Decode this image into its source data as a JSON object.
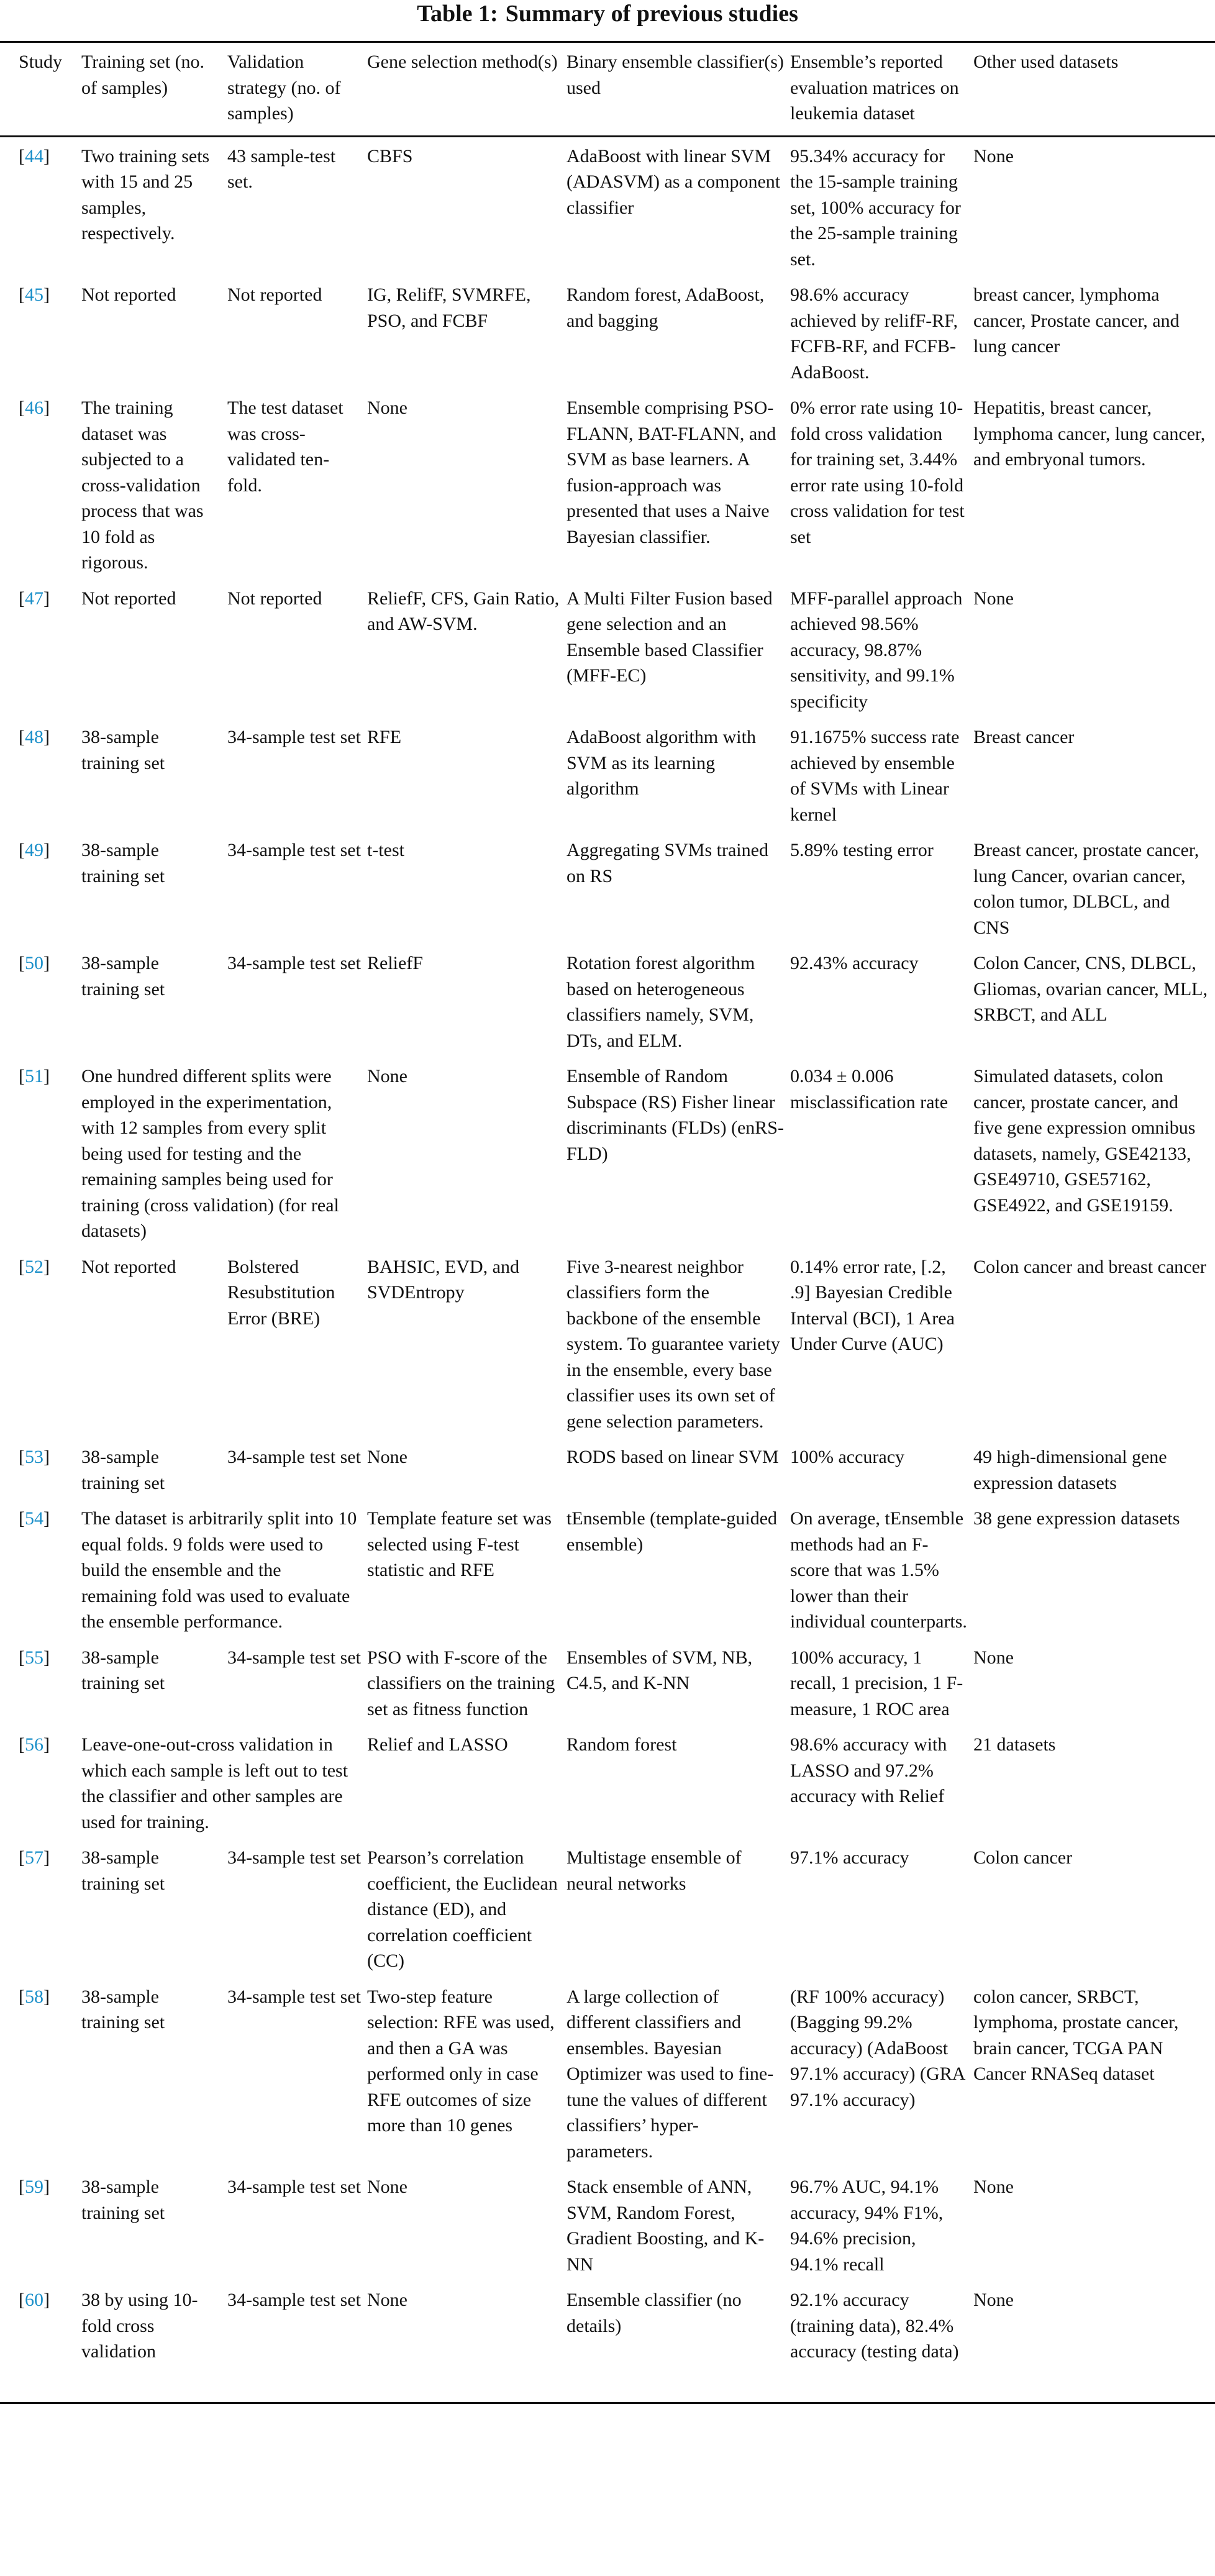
{
  "table": {
    "label": "Table 1:",
    "caption": "Summary of previous studies",
    "headers": [
      "Study",
      "Training set (no. of samples)",
      "Validation strategy (no. of samples)",
      "Gene selection method(s)",
      "Binary ensemble classifier(s) used",
      "Ensemble’s reported evaluation matrices on leukemia dataset",
      "Other used datasets"
    ],
    "link_color": "#1a8fc9",
    "rows": [
      {
        "ref": "44",
        "training": "Two training sets with 15 and 25 samples, respectively.",
        "validation": "43 sample-test set.",
        "gene": "CBFS",
        "classifier": "AdaBoost with linear SVM (ADASVM) as a component classifier",
        "metrics": "95.34% accuracy for the 15-sample training set, 100% accuracy for the 25-sample training set.",
        "other": "None"
      },
      {
        "ref": "45",
        "training": "Not reported",
        "validation": "Not reported",
        "gene": "IG, RelifF, SVMRFE, PSO, and FCBF",
        "classifier": "Random forest, AdaBoost, and bagging",
        "metrics": "98.6% accuracy achieved by relifF-RF, FCFB-RF, and FCFB-AdaBoost.",
        "other": "breast cancer, lymphoma cancer, Prostate cancer, and lung cancer"
      },
      {
        "ref": "46",
        "training": "The training dataset was subjected to a cross-validation process that was 10 fold as rigorous.",
        "validation": "The test dataset was cross-validated ten-fold.",
        "gene": "None",
        "classifier": "Ensemble comprising PSO-FLANN, BAT-FLANN, and SVM as base learners. A fusion-approach was presented that uses a Naive Bayesian classifier.",
        "metrics": "0% error rate using 10-fold cross validation for training set, 3.44% error rate using 10-fold cross validation for test set",
        "other": "Hepatitis, breast cancer, lymphoma cancer, lung cancer, and embryonal tumors."
      },
      {
        "ref": "47",
        "training": "Not reported",
        "validation": "Not reported",
        "gene": "ReliefF, CFS, Gain Ratio, and AW-SVM.",
        "classifier": "A Multi Filter Fusion based gene selection and an Ensemble based Classifier (MFF-EC)",
        "metrics": "MFF-parallel approach achieved 98.56% accuracy, 98.87% sensitivity, and 99.1% specificity",
        "other": "None"
      },
      {
        "ref": "48",
        "training": "38-sample training set",
        "validation": "34-sample test set",
        "gene": "RFE",
        "classifier": "AdaBoost algorithm with SVM as its learning algorithm",
        "metrics": "91.1675% success rate achieved by ensemble of SVMs with Linear kernel",
        "other": "Breast cancer"
      },
      {
        "ref": "49",
        "training": "38-sample training set",
        "validation": "34-sample test set",
        "gene": "t-test",
        "classifier": "Aggregating SVMs trained on RS",
        "metrics": "5.89% testing error",
        "other": "Breast cancer, prostate cancer, lung Cancer, ovarian cancer, colon tumor, DLBCL, and CNS"
      },
      {
        "ref": "50",
        "training": "38-sample training set",
        "validation": "34-sample test set",
        "gene": "ReliefF",
        "classifier": "Rotation forest algorithm based on heterogeneous classifiers namely, SVM, DTs, and ELM.",
        "metrics": "92.43% accuracy",
        "other": "Colon Cancer, CNS, DLBCL, Gliomas, ovarian cancer, MLL, SRBCT, and ALL"
      },
      {
        "ref": "51",
        "training": "One hundred different splits were employed in the experimentation, with 12 samples from every split being used for testing and the remaining samples being used for training (cross validation) (for real datasets)",
        "span": true,
        "gene": "None",
        "classifier": "Ensemble of Random Subspace (RS) Fisher linear discriminants (FLDs) (enRS-FLD)",
        "metrics": "0.034 ± 0.006 misclassification rate",
        "other": "Simulated datasets, colon cancer, prostate cancer, and five gene expression omnibus datasets, namely, GSE42133, GSE49710, GSE57162, GSE4922, and GSE19159."
      },
      {
        "ref": "52",
        "training": "Not reported",
        "validation": "Bolstered Resubstitution Error (BRE)",
        "gene": "BAHSIC, EVD, and SVDEntropy",
        "classifier": "Five 3-nearest neighbor classifiers form the backbone of the ensemble system. To guarantee variety in the ensemble, every base classifier uses its own set of gene selection parameters.",
        "metrics": "0.14% error rate, [.2, .9] Bayesian Credible Interval (BCI), 1 Area Under Curve (AUC)",
        "other": "Colon cancer and breast cancer"
      },
      {
        "ref": "53",
        "training": "38-sample training set",
        "validation": "34-sample test set",
        "gene": "None",
        "classifier": "RODS based on linear SVM",
        "metrics": "100% accuracy",
        "other": "49 high-dimensional gene expression datasets"
      },
      {
        "ref": "54",
        "training": "The dataset is arbitrarily split into 10 equal folds. 9 folds were used to build the ensemble and the remaining fold was used to evaluate the ensemble performance.",
        "span": true,
        "gene": "Template feature set was selected using F-test statistic and RFE",
        "classifier": "tEnsemble (template-guided ensemble)",
        "metrics": "On average, tEnsemble methods had an F-score that was 1.5% lower than their individual counterparts.",
        "other": "38 gene expression datasets"
      },
      {
        "ref": "55",
        "training": "38-sample training set",
        "validation": "34-sample test set",
        "gene": "PSO with F-score of the classifiers on the training set as fitness function",
        "classifier": "Ensembles of SVM, NB, C4.5, and K-NN",
        "metrics": "100% accuracy, 1 recall, 1 precision, 1 F-measure, 1 ROC area",
        "other": "None"
      },
      {
        "ref": "56",
        "training": "Leave-one-out-cross validation in which each sample is left out to test the classifier and other samples are used for training.",
        "span": true,
        "gene": "Relief and LASSO",
        "classifier": "Random forest",
        "metrics": "98.6% accuracy with LASSO and 97.2% accuracy with Relief",
        "other": "21 datasets"
      },
      {
        "ref": "57",
        "training": "38-sample training set",
        "validation": "34-sample test set",
        "gene": "Pearson’s correlation coefficient, the Euclidean distance (ED), and correlation coefficient (CC)",
        "classifier": "Multistage ensemble of neural networks",
        "metrics": "97.1% accuracy",
        "other": "Colon cancer"
      },
      {
        "ref": "58",
        "training": "38-sample training set",
        "validation": "34-sample test set",
        "gene": "Two-step feature selection: RFE was used, and then a GA was performed only in case RFE outcomes of size more than 10 genes",
        "classifier": "A large collection of different classifiers and ensembles. Bayesian Optimizer was used to fine-tune the values of different classifiers’ hyper-parameters.",
        "metrics": "(RF 100% accuracy) (Bagging 99.2% accuracy) (AdaBoost 97.1% accuracy) (GRA 97.1% accuracy)",
        "other": "colon cancer, SRBCT, lymphoma, prostate cancer, brain cancer, TCGA PAN Cancer RNASeq dataset"
      },
      {
        "ref": "59",
        "training": "38-sample training set",
        "validation": "34-sample test set",
        "gene": "None",
        "classifier": "Stack ensemble of ANN, SVM, Random Forest, Gradient Boosting, and K-NN",
        "metrics": "96.7% AUC, 94.1% accuracy, 94% F1%, 94.6% precision, 94.1% recall",
        "other": "None"
      },
      {
        "ref": "60",
        "training": "38 by using 10-fold cross validation",
        "validation": "34-sample test set",
        "gene": "None",
        "classifier": "Ensemble classifier (no details)",
        "metrics": "92.1% accuracy (training data), 82.4% accuracy (testing data)",
        "other": "None"
      }
    ]
  }
}
